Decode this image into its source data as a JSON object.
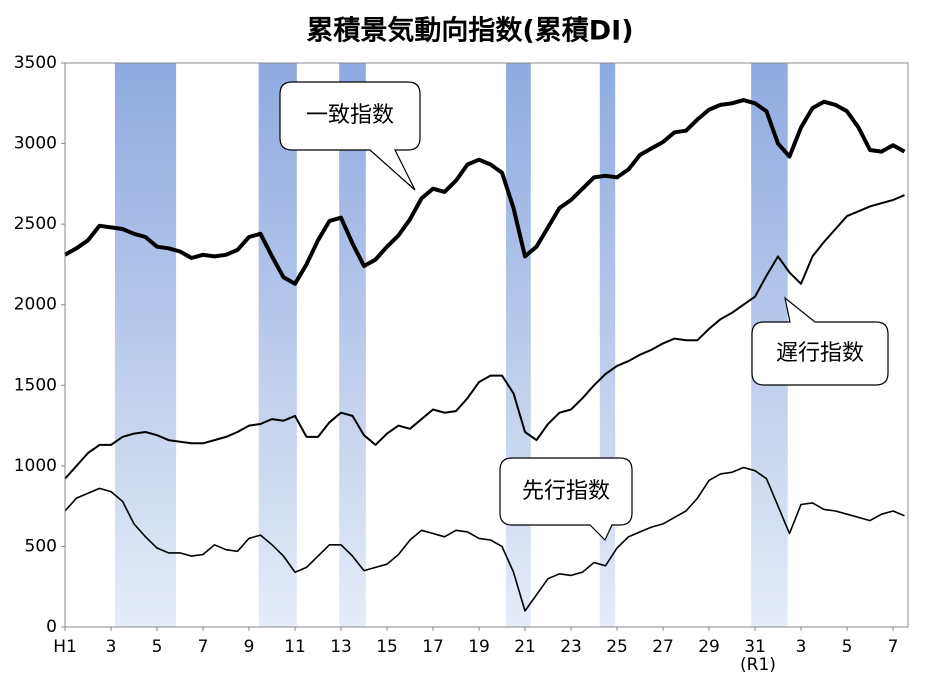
{
  "chart_data": {
    "type": "line",
    "title": "累積景気動向指数(累積DI)",
    "x": [
      1989,
      1989.5,
      1990,
      1990.5,
      1991,
      1991.5,
      1992,
      1992.5,
      1993,
      1993.5,
      1994,
      1994.5,
      1995,
      1995.5,
      1996,
      1996.5,
      1997,
      1997.5,
      1998,
      1998.5,
      1999,
      1999.5,
      2000,
      2000.5,
      2001,
      2001.5,
      2002,
      2002.5,
      2003,
      2003.5,
      2004,
      2004.5,
      2005,
      2005.5,
      2006,
      2006.5,
      2007,
      2007.5,
      2008,
      2008.5,
      2009,
      2009.5,
      2010,
      2010.5,
      2011,
      2011.5,
      2012,
      2012.5,
      2013,
      2013.5,
      2014,
      2014.5,
      2015,
      2015.5,
      2016,
      2016.5,
      2017,
      2017.5,
      2018,
      2018.5,
      2019,
      2019.5,
      2020,
      2020.5,
      2021,
      2021.5,
      2022,
      2022.5,
      2023,
      2023.5,
      2024,
      2024.5,
      2025,
      2025.5
    ],
    "series": [
      {
        "name": "一致指数",
        "color": "#000000",
        "values": [
          2310,
          2350,
          2400,
          2490,
          2480,
          2470,
          2440,
          2420,
          2360,
          2350,
          2330,
          2290,
          2310,
          2300,
          2310,
          2340,
          2420,
          2440,
          2300,
          2170,
          2130,
          2250,
          2400,
          2520,
          2540,
          2380,
          2240,
          2280,
          2360,
          2430,
          2530,
          2660,
          2720,
          2700,
          2770,
          2870,
          2900,
          2870,
          2820,
          2600,
          2300,
          2360,
          2480,
          2600,
          2650,
          2720,
          2790,
          2800,
          2790,
          2840,
          2930,
          2970,
          3010,
          3070,
          3080,
          3150,
          3210,
          3240,
          3250,
          3270,
          3250,
          3200,
          3000,
          2920,
          3100,
          3220,
          3260,
          3240,
          3200,
          3100,
          2960,
          2950,
          2990,
          2950
        ]
      },
      {
        "name": "遅行指数",
        "color": "#000000",
        "values": [
          920,
          1000,
          1080,
          1130,
          1130,
          1180,
          1200,
          1210,
          1190,
          1160,
          1150,
          1140,
          1140,
          1160,
          1180,
          1210,
          1250,
          1260,
          1290,
          1280,
          1310,
          1180,
          1180,
          1270,
          1330,
          1310,
          1190,
          1130,
          1200,
          1250,
          1230,
          1290,
          1350,
          1330,
          1340,
          1420,
          1520,
          1560,
          1560,
          1450,
          1210,
          1160,
          1260,
          1330,
          1350,
          1420,
          1500,
          1570,
          1620,
          1650,
          1690,
          1720,
          1760,
          1790,
          1780,
          1780,
          1850,
          1910,
          1950,
          2000,
          2050,
          2180,
          2300,
          2200,
          2130,
          2300,
          2390,
          2470,
          2550,
          2580,
          2610,
          2630,
          2650,
          2680
        ]
      },
      {
        "name": "先行指数",
        "color": "#000000",
        "values": [
          720,
          800,
          830,
          860,
          840,
          780,
          640,
          560,
          490,
          460,
          460,
          440,
          450,
          510,
          480,
          470,
          550,
          570,
          510,
          440,
          340,
          370,
          440,
          510,
          510,
          440,
          350,
          370,
          390,
          450,
          540,
          600,
          580,
          560,
          600,
          590,
          550,
          540,
          500,
          340,
          100,
          200,
          300,
          330,
          320,
          340,
          400,
          380,
          490,
          560,
          590,
          620,
          640,
          680,
          720,
          800,
          910,
          950,
          960,
          990,
          970,
          920,
          750,
          580,
          760,
          770,
          730,
          720,
          700,
          680,
          660,
          700,
          720,
          690
        ]
      }
    ],
    "shaded_periods": [
      [
        1991.17,
        1993.83
      ],
      [
        1997.42,
        1999.08
      ],
      [
        2000.92,
        2002.08
      ],
      [
        2008.17,
        2009.25
      ],
      [
        2012.25,
        2012.92
      ],
      [
        2018.83,
        2020.42
      ]
    ],
    "xlim": [
      1989,
      2025.65
    ],
    "xticks": [
      {
        "value": 1989,
        "label": "H1"
      },
      {
        "value": 1991,
        "label": "3"
      },
      {
        "value": 1993,
        "label": "5"
      },
      {
        "value": 1995,
        "label": "7"
      },
      {
        "value": 1997,
        "label": "9"
      },
      {
        "value": 1999,
        "label": "11"
      },
      {
        "value": 2001,
        "label": "13"
      },
      {
        "value": 2003,
        "label": "15"
      },
      {
        "value": 2005,
        "label": "17"
      },
      {
        "value": 2007,
        "label": "19"
      },
      {
        "value": 2009,
        "label": "21"
      },
      {
        "value": 2011,
        "label": "23"
      },
      {
        "value": 2013,
        "label": "25"
      },
      {
        "value": 2015,
        "label": "27"
      },
      {
        "value": 2017,
        "label": "29"
      },
      {
        "value": 2019,
        "label": "31"
      },
      {
        "value": 2021,
        "label": "3"
      },
      {
        "value": 2023,
        "label": "5"
      },
      {
        "value": 2025,
        "label": "7"
      }
    ],
    "annotation": "(R1)",
    "ylim": [
      0,
      3500
    ],
    "yticks": [
      0,
      500,
      1000,
      1500,
      2000,
      2500,
      3000,
      3500
    ]
  }
}
